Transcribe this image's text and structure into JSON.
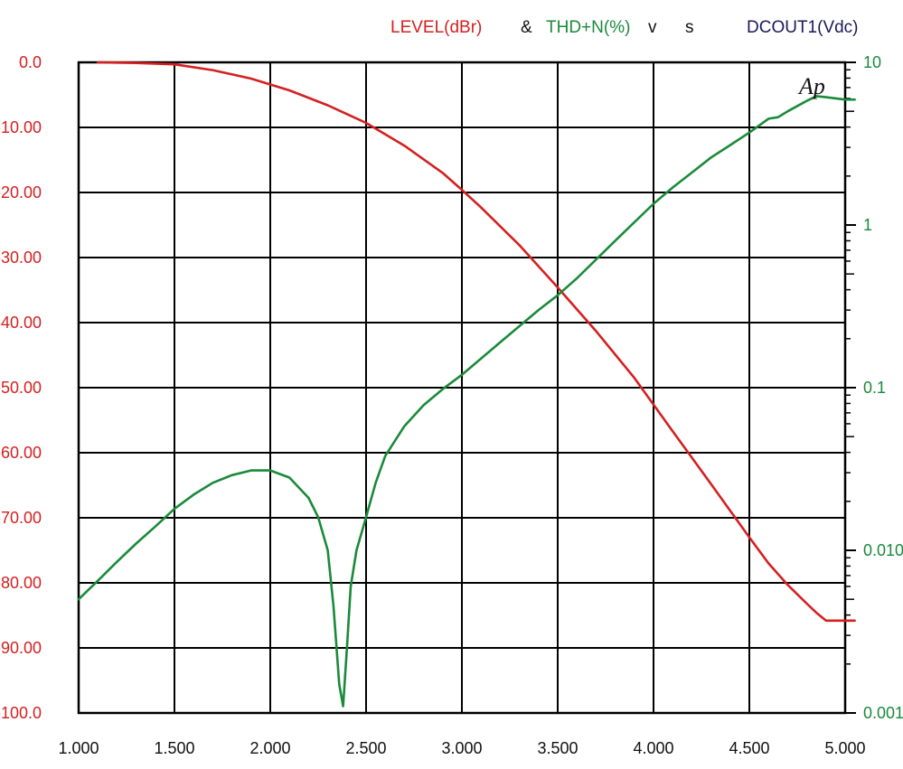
{
  "chart_data": {
    "type": "line",
    "title_parts": [
      {
        "text": "LEVEL(dBr)",
        "color": "#d42020"
      },
      {
        "text": "&",
        "color": "#111111"
      },
      {
        "text": "THD+N(%)",
        "color": "#1a8a3a"
      },
      {
        "text": "v",
        "color": "#111111"
      },
      {
        "text": "s",
        "color": "#111111"
      },
      {
        "text": "DCOUT1(Vdc)",
        "color": "#1a1a5a"
      }
    ],
    "logo_text": "Ap",
    "x_axis": {
      "range": [
        1.0,
        5.0
      ],
      "ticks": [
        1.0,
        1.5,
        2.0,
        2.5,
        3.0,
        3.5,
        4.0,
        4.5,
        5.0
      ],
      "tick_labels": [
        "1.000",
        "1.500",
        "2.000",
        "2.500",
        "3.000",
        "3.500",
        "4.000",
        "4.500",
        "5.000"
      ]
    },
    "y_left": {
      "range": [
        -100,
        0
      ],
      "ticks": [
        0,
        -10,
        -20,
        -30,
        -40,
        -50,
        -60,
        -70,
        -80,
        -90,
        -100
      ],
      "tick_labels": [
        "0.0",
        "-10.00",
        "-20.00",
        "-30.00",
        "-40.00",
        "-50.00",
        "-60.00",
        "-70.00",
        "-80.00",
        "-90.00",
        "-100.0"
      ],
      "color": "#d42020"
    },
    "y_right": {
      "scale": "log",
      "range": [
        0.001,
        10
      ],
      "ticks": [
        10,
        1,
        0.1,
        0.01,
        0.001
      ],
      "tick_labels": [
        "10",
        "1",
        "0.1",
        "0.010",
        "0.001"
      ],
      "color": "#1a8a3a"
    },
    "grid": true,
    "series": [
      {
        "name": "LEVEL(dBr)",
        "axis": "left",
        "color": "#d42020",
        "x": [
          1.1,
          1.3,
          1.5,
          1.7,
          1.9,
          2.1,
          2.3,
          2.5,
          2.7,
          2.9,
          3.0,
          3.1,
          3.3,
          3.5,
          3.7,
          3.9,
          4.0,
          4.1,
          4.3,
          4.5,
          4.6,
          4.7,
          4.8,
          4.85,
          4.9,
          5.0,
          5.05
        ],
        "y": [
          0,
          -0.1,
          -0.3,
          -1.2,
          -2.5,
          -4.3,
          -6.6,
          -9.3,
          -12.8,
          -17.0,
          -19.6,
          -22.3,
          -28.1,
          -34.6,
          -41.3,
          -48.5,
          -52.6,
          -56.7,
          -64.8,
          -73.0,
          -77.0,
          -80.3,
          -83.2,
          -84.6,
          -85.8,
          -85.8,
          -85.8
        ]
      },
      {
        "name": "THD+N(%)",
        "axis": "right",
        "color": "#1a8a3a",
        "x": [
          1.0,
          1.1,
          1.2,
          1.3,
          1.4,
          1.5,
          1.6,
          1.7,
          1.8,
          1.9,
          2.0,
          2.1,
          2.2,
          2.25,
          2.3,
          2.33,
          2.36,
          2.38,
          2.4,
          2.42,
          2.45,
          2.5,
          2.55,
          2.6,
          2.7,
          2.8,
          2.9,
          3.0,
          3.2,
          3.4,
          3.5,
          3.6,
          3.8,
          4.0,
          4.1,
          4.2,
          4.3,
          4.4,
          4.5,
          4.6,
          4.65,
          4.7,
          4.8,
          4.85,
          4.9,
          5.0,
          5.05
        ],
        "y": [
          0.005,
          0.0065,
          0.0085,
          0.011,
          0.014,
          0.018,
          0.022,
          0.026,
          0.029,
          0.031,
          0.031,
          0.028,
          0.021,
          0.016,
          0.01,
          0.0045,
          0.0015,
          0.0011,
          0.0025,
          0.006,
          0.01,
          0.016,
          0.026,
          0.038,
          0.058,
          0.078,
          0.098,
          0.12,
          0.19,
          0.3,
          0.37,
          0.47,
          0.8,
          1.35,
          1.7,
          2.1,
          2.6,
          3.1,
          3.7,
          4.5,
          4.6,
          5.0,
          5.8,
          6.2,
          6.1,
          5.9,
          5.9
        ]
      }
    ]
  }
}
